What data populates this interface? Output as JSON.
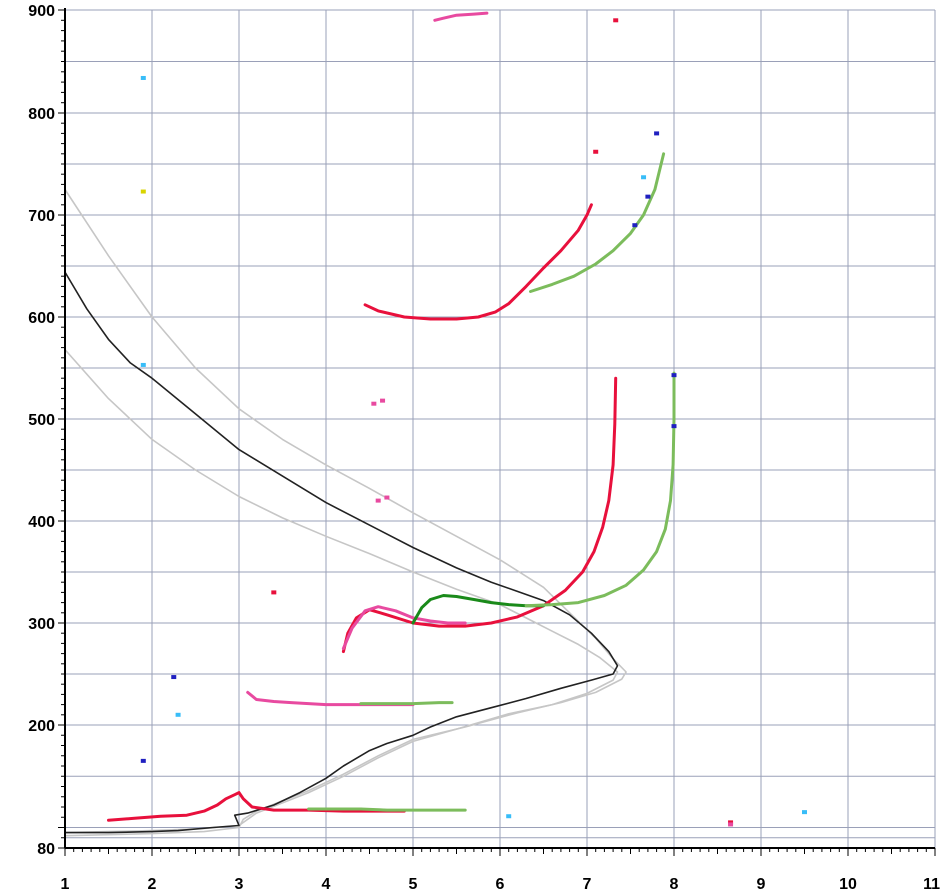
{
  "chart_data": {
    "type": "scatter",
    "x_ticks": [
      "1",
      "2",
      "3",
      "4",
      "5",
      "6",
      "7",
      "8",
      "9",
      "10",
      "11"
    ],
    "y_ticks": [
      "80",
      "200",
      "300",
      "400",
      "500",
      "600",
      "700",
      "800",
      "900"
    ],
    "xlim": [
      1,
      11
    ],
    "ylim": [
      80,
      900
    ],
    "grid": true,
    "colors": {
      "grid": "#9aa0b8",
      "red": "#e8103c",
      "pink": "#e84aa0",
      "green": "#1a8a1a",
      "light_green": "#7cbc5c",
      "black": "#222222",
      "gray": "#c6c6c6",
      "blue": "#2020c0",
      "cyan": "#38bdf8",
      "yellow": "#d9d400"
    },
    "series": [
      {
        "kind": "line",
        "color": "gray",
        "x": [
          1.0,
          1.5,
          2.0,
          2.5,
          3.0,
          3.5,
          4.0,
          4.5,
          5.0,
          5.5,
          6.0,
          6.5,
          6.8,
          7.1,
          7.3,
          7.45,
          7.4,
          7.1,
          6.7,
          6.2,
          5.6,
          5.0,
          4.6,
          4.2,
          3.8,
          3.5,
          3.2,
          3.05,
          3.0,
          2.6,
          2.0,
          1.5,
          1.0
        ],
        "y": [
          725,
          660,
          600,
          550,
          510,
          480,
          455,
          432,
          408,
          385,
          362,
          335,
          310,
          285,
          265,
          252,
          245,
          232,
          222,
          212,
          198,
          186,
          170,
          152,
          136,
          126,
          116,
          108,
          100,
          96,
          94,
          93,
          92
        ]
      },
      {
        "kind": "line",
        "color": "gray",
        "x": [
          1.0,
          1.5,
          2.0,
          2.5,
          3.0,
          3.5,
          4.0,
          4.5,
          5.0,
          5.5,
          6.0,
          6.3,
          6.6,
          6.9,
          7.15,
          7.35,
          7.3,
          7.0,
          6.6,
          6.1,
          5.5,
          5.0,
          4.6,
          4.2,
          3.8,
          3.5,
          3.2,
          3.0,
          2.6,
          2.0,
          1.5,
          1.0
        ],
        "y": [
          568,
          520,
          480,
          450,
          424,
          403,
          385,
          368,
          350,
          333,
          318,
          305,
          292,
          279,
          266,
          252,
          244,
          231,
          220,
          211,
          196,
          184,
          168,
          150,
          134,
          124,
          114,
          102,
          99,
          97,
          96,
          95
        ]
      },
      {
        "kind": "line",
        "color": "black",
        "x": [
          1.0,
          1.25,
          1.5,
          1.75,
          2.0,
          2.5,
          3.0,
          3.5,
          4.0,
          4.5,
          5.0,
          5.5,
          5.9,
          6.2,
          6.5,
          6.8,
          7.05,
          7.25,
          7.35,
          7.3,
          7.05,
          6.7,
          6.3,
          5.9,
          5.5,
          5.2,
          5.0,
          4.7,
          4.5,
          4.2,
          4.0,
          3.7,
          3.4,
          3.1,
          2.95,
          3.0,
          2.7,
          2.3,
          2.0,
          1.5,
          1.0
        ],
        "y": [
          644,
          608,
          578,
          555,
          540,
          505,
          470,
          444,
          418,
          396,
          374,
          354,
          340,
          331,
          322,
          308,
          290,
          272,
          258,
          250,
          244,
          236,
          226,
          217,
          208,
          198,
          190,
          182,
          175,
          160,
          148,
          134,
          122,
          114,
          112,
          102,
          100,
          97,
          96,
          95,
          95
        ]
      },
      {
        "kind": "line",
        "color": "red",
        "x": [
          4.2,
          4.25,
          4.35,
          4.5,
          4.7,
          5.0,
          5.3,
          5.6,
          5.9,
          6.2,
          6.5,
          6.75,
          6.95,
          7.08,
          7.18,
          7.25,
          7.3,
          7.32,
          7.33
        ],
        "y": [
          272,
          290,
          305,
          313,
          308,
          300,
          297,
          297,
          300,
          306,
          317,
          332,
          350,
          370,
          394,
          420,
          455,
          495,
          540
        ]
      },
      {
        "kind": "line",
        "color": "pink",
        "x": [
          4.2,
          4.3,
          4.45,
          4.6,
          4.8,
          5.0,
          5.2,
          5.4,
          5.6
        ],
        "y": [
          275,
          295,
          312,
          316,
          312,
          305,
          302,
          300,
          300
        ]
      },
      {
        "kind": "line",
        "color": "green",
        "x": [
          5.0,
          5.1,
          5.2,
          5.35,
          5.5,
          5.7,
          5.9,
          6.1,
          6.3,
          6.5
        ],
        "y": [
          300,
          315,
          323,
          327,
          326,
          323,
          320,
          318,
          317,
          317
        ]
      },
      {
        "kind": "line",
        "color": "light_green",
        "x": [
          6.3,
          6.6,
          6.9,
          7.2,
          7.45,
          7.65,
          7.8,
          7.9,
          7.96,
          7.99,
          8.0,
          8.0
        ],
        "y": [
          317,
          318,
          320,
          327,
          337,
          352,
          370,
          392,
          420,
          455,
          500,
          545
        ]
      },
      {
        "kind": "line",
        "color": "red",
        "x": [
          1.5,
          1.8,
          2.1,
          2.4,
          2.6,
          2.75,
          2.85,
          2.95,
          3.0,
          3.05,
          3.15,
          3.4,
          3.8,
          4.2,
          4.6,
          4.9
        ],
        "y": [
          107,
          109,
          111,
          112,
          116,
          122,
          128,
          132,
          134,
          128,
          120,
          117,
          117,
          116,
          116,
          116
        ]
      },
      {
        "kind": "line",
        "color": "light_green",
        "x": [
          3.8,
          4.1,
          4.4,
          4.7,
          5.0,
          5.3,
          5.6
        ],
        "y": [
          118,
          118,
          118,
          117,
          117,
          117,
          117
        ]
      },
      {
        "kind": "line",
        "color": "red",
        "x": [
          4.45,
          4.6,
          4.9,
          5.2,
          5.5,
          5.75,
          5.95,
          6.1,
          6.3,
          6.5,
          6.7,
          6.9,
          7.0,
          7.05
        ],
        "y": [
          612,
          606,
          600,
          598,
          598,
          600,
          605,
          613,
          630,
          648,
          665,
          685,
          700,
          710
        ]
      },
      {
        "kind": "line",
        "color": "light_green",
        "x": [
          6.35,
          6.6,
          6.85,
          7.1,
          7.3,
          7.5,
          7.65,
          7.78,
          7.88
        ],
        "y": [
          625,
          632,
          640,
          652,
          665,
          682,
          700,
          725,
          760
        ]
      },
      {
        "kind": "line",
        "color": "pink",
        "x": [
          3.1,
          3.2,
          3.4,
          3.6,
          3.8,
          4.0,
          4.3,
          4.6,
          5.0
        ],
        "y": [
          232,
          225,
          223,
          222,
          221,
          220,
          220,
          220,
          220
        ]
      },
      {
        "kind": "line",
        "color": "light_green",
        "x": [
          4.4,
          4.7,
          5.0,
          5.3,
          5.45
        ],
        "y": [
          221,
          221,
          221,
          222,
          222
        ]
      },
      {
        "kind": "line",
        "color": "pink",
        "x": [
          5.25,
          5.35,
          5.5,
          5.7,
          5.85
        ],
        "y": [
          890,
          892,
          895,
          896,
          897
        ]
      },
      {
        "kind": "points",
        "color": "blue",
        "x": [
          1.9,
          2.25,
          7.55,
          7.7,
          7.8,
          8.0,
          8.0
        ],
        "y": [
          165,
          247,
          690,
          718,
          780,
          543,
          493
        ]
      },
      {
        "kind": "points",
        "color": "cyan",
        "x": [
          1.9,
          1.9,
          2.3,
          6.1,
          7.65,
          9.5
        ],
        "y": [
          834,
          553,
          210,
          111,
          737,
          115
        ]
      },
      {
        "kind": "points",
        "color": "yellow",
        "x": [
          1.9
        ],
        "y": [
          723
        ]
      },
      {
        "kind": "points",
        "color": "red",
        "x": [
          7.33,
          7.1,
          3.4,
          8.65
        ],
        "y": [
          890,
          762,
          330,
          105
        ]
      },
      {
        "kind": "points",
        "color": "pink",
        "x": [
          4.65,
          4.55,
          8.65,
          4.6,
          4.7
        ],
        "y": [
          518,
          515,
          103,
          420,
          423
        ]
      }
    ]
  }
}
